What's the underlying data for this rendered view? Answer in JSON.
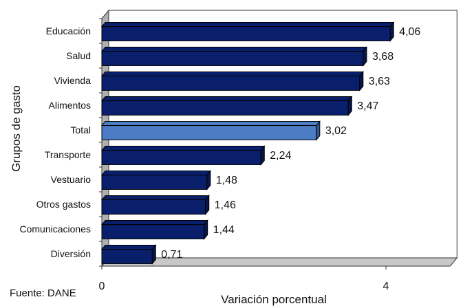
{
  "source_note": "Fuente: DANE",
  "chart_data": {
    "type": "bar",
    "orientation": "horizontal",
    "categories": [
      "Educación",
      "Salud",
      "Vivienda",
      "Alimentos",
      "Total",
      "Transporte",
      "Vestuario",
      "Otros gastos",
      "Comunicaciones",
      "Diversión"
    ],
    "values": [
      4.06,
      3.68,
      3.63,
      3.47,
      3.02,
      2.24,
      1.48,
      1.46,
      1.44,
      0.71
    ],
    "value_labels": [
      "4,06",
      "3,68",
      "3,63",
      "3,47",
      "3,02",
      "2,24",
      "1,48",
      "1,46",
      "1,44",
      "0,71"
    ],
    "highlight_category": "Total",
    "colors": {
      "bar": "#0a1f6b",
      "highlight": "#4b7cc4",
      "wall": "#b0b0b0",
      "floor": "#c8c8c8"
    },
    "xlabel": "Variación porcentual",
    "ylabel": "Grupos de gasto",
    "xlim": [
      0,
      5
    ],
    "xticks": [
      0,
      4
    ],
    "xtick_labels": [
      "0",
      "4"
    ],
    "grid": false,
    "legend": "none"
  }
}
